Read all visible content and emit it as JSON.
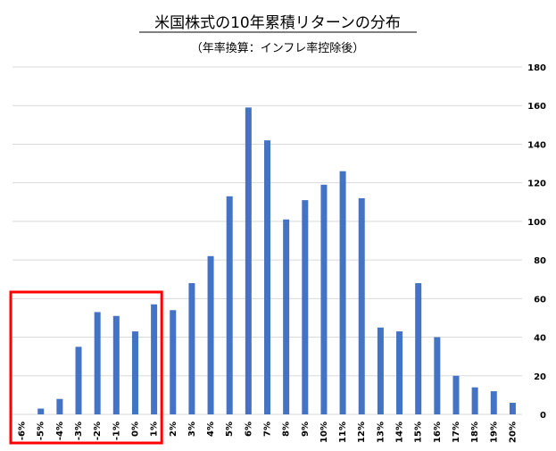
{
  "chart_data": {
    "type": "bar",
    "title": "米国株式の10年累積リターンの分布",
    "subtitle": "（年率換算：インフレ率控除後）",
    "categories": [
      "-6%",
      "-5%",
      "-4%",
      "-3%",
      "-2%",
      "-1%",
      "0%",
      "1%",
      "2%",
      "3%",
      "4%",
      "5%",
      "6%",
      "7%",
      "8%",
      "9%",
      "10%",
      "11%",
      "12%",
      "13%",
      "14%",
      "15%",
      "16%",
      "17%",
      "18%",
      "19%",
      "20%"
    ],
    "values": [
      0,
      3,
      8,
      35,
      53,
      51,
      43,
      57,
      54,
      68,
      82,
      113,
      159,
      142,
      101,
      111,
      119,
      126,
      112,
      45,
      43,
      68,
      40,
      20,
      14,
      12,
      6
    ],
    "series": [
      {
        "values": [
          0,
          3,
          8,
          35,
          53,
          51,
          43,
          57,
          54,
          68,
          82,
          113,
          159,
          142,
          101,
          111,
          119,
          126,
          112,
          45,
          43,
          68,
          40,
          20,
          14,
          12,
          6
        ]
      }
    ],
    "y_ticks": [
      "0",
      "20",
      "40",
      "60",
      "80",
      "100",
      "120",
      "140",
      "160",
      "180"
    ],
    "ylim": [
      0,
      180
    ],
    "yaxis_position": "right",
    "grid": true,
    "legend": "none",
    "bar_color": "#4472c4",
    "highlight": {
      "from_category": "-6%",
      "to_category": "1%",
      "color": "#ff0000"
    }
  }
}
